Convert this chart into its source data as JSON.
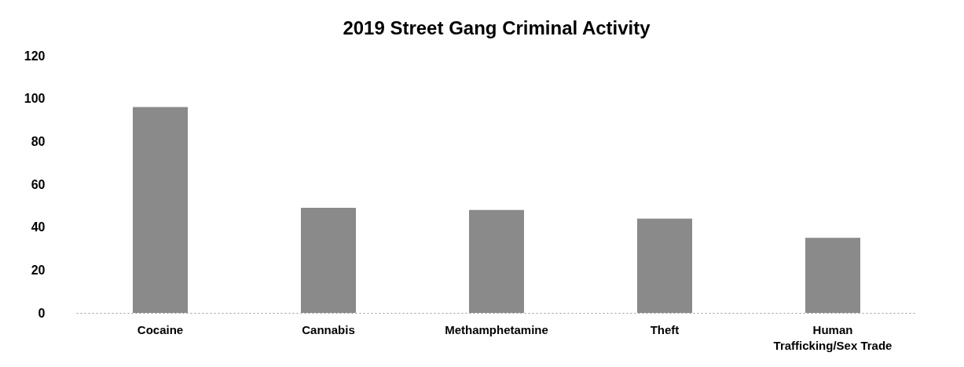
{
  "chart_data": {
    "type": "bar",
    "title": "2019 Street Gang Criminal Activity",
    "categories": [
      "Cocaine",
      "Cannabis",
      "Methamphetamine",
      "Theft",
      "Human Trafficking/Sex Trade"
    ],
    "values": [
      96,
      49,
      48,
      44,
      35
    ],
    "color": "#8a8a8a",
    "ylim": [
      0,
      120
    ],
    "yticks": [
      0,
      20,
      40,
      60,
      80,
      100,
      120
    ]
  }
}
